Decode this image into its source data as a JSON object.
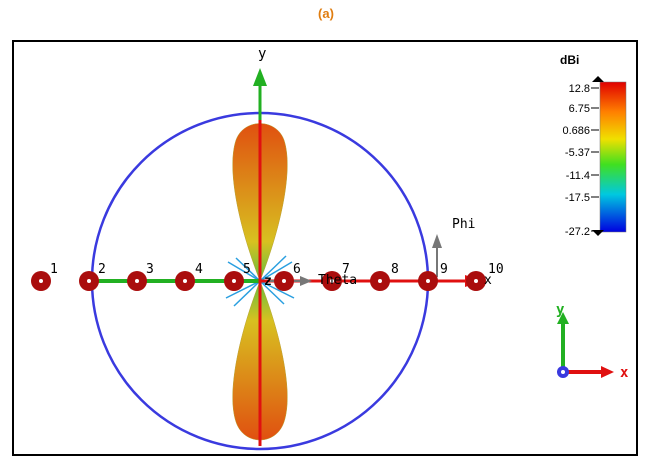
{
  "caption": "(a)",
  "axes": {
    "y_label": "y",
    "x_label": "x",
    "z_label": "z",
    "phi_label": "Phi",
    "theta_label": "Theta"
  },
  "elements": [
    "1",
    "2",
    "3",
    "4",
    "5",
    "6",
    "7",
    "8",
    "9",
    "10"
  ],
  "colorbar": {
    "unit": "dBi",
    "ticks": [
      "12.8",
      "6.75",
      "0.686",
      "-5.37",
      "-11.4",
      "-17.5",
      "-27.2"
    ]
  },
  "triad": {
    "y": "y",
    "x": "x"
  },
  "colors": {
    "circle": "#3a3adf",
    "axis_green": "#22b022",
    "axis_red": "#e01010",
    "element_red": "#aa0d0d",
    "arrow_gray": "#777777"
  }
}
